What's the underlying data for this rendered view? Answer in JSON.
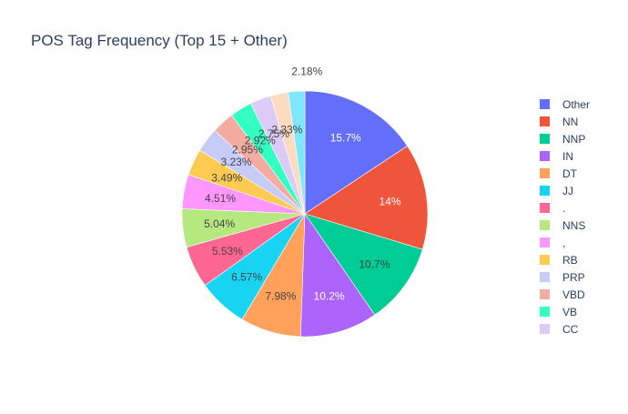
{
  "chart_data": {
    "type": "pie",
    "title": "POS Tag Frequency (Top 15 + Other)",
    "slices": [
      {
        "label": "Other",
        "value": 15.7,
        "text": "15.7%",
        "color": "#636efa"
      },
      {
        "label": "NN",
        "value": 14.0,
        "text": "14%",
        "color": "#ef553b"
      },
      {
        "label": "NNP",
        "value": 10.7,
        "text": "10.7%",
        "color": "#00cc96"
      },
      {
        "label": "IN",
        "value": 10.2,
        "text": "10.2%",
        "color": "#ab63fa"
      },
      {
        "label": "DT",
        "value": 7.98,
        "text": "7.98%",
        "color": "#ffa15a"
      },
      {
        "label": "JJ",
        "value": 6.57,
        "text": "6.57%",
        "color": "#19d3f3"
      },
      {
        "label": ".",
        "value": 5.53,
        "text": "5.53%",
        "color": "#ff6692"
      },
      {
        "label": "NNS",
        "value": 5.04,
        "text": "5.04%",
        "color": "#b6e880"
      },
      {
        "label": ",",
        "value": 4.51,
        "text": "4.51%",
        "color": "#ff97ff"
      },
      {
        "label": "RB",
        "value": 3.49,
        "text": "3.49%",
        "color": "#fecb52"
      },
      {
        "label": "PRP",
        "value": 3.23,
        "text": "3.23%",
        "color": "#c6cbf7"
      },
      {
        "label": "VBD",
        "value": 2.95,
        "text": "2.95%",
        "color": "#f4aca0"
      },
      {
        "label": "VB",
        "value": 2.92,
        "text": "2.92%",
        "color": "#33ffc3"
      },
      {
        "label": "CC",
        "value": 2.75,
        "text": "2.75%",
        "color": "#ddcbf7"
      },
      {
        "label": "",
        "value": 2.33,
        "text": "2.33%",
        "color": "#fcdcc0"
      },
      {
        "label": "",
        "value": 2.18,
        "text": "2.18%",
        "color": "#7fe8f8"
      }
    ],
    "legend": {
      "position": "right"
    },
    "colors": {
      "title": "#2a3f5f",
      "label_dark": "#444444",
      "label_light": "#ffffff",
      "border": "#ffffff"
    }
  }
}
